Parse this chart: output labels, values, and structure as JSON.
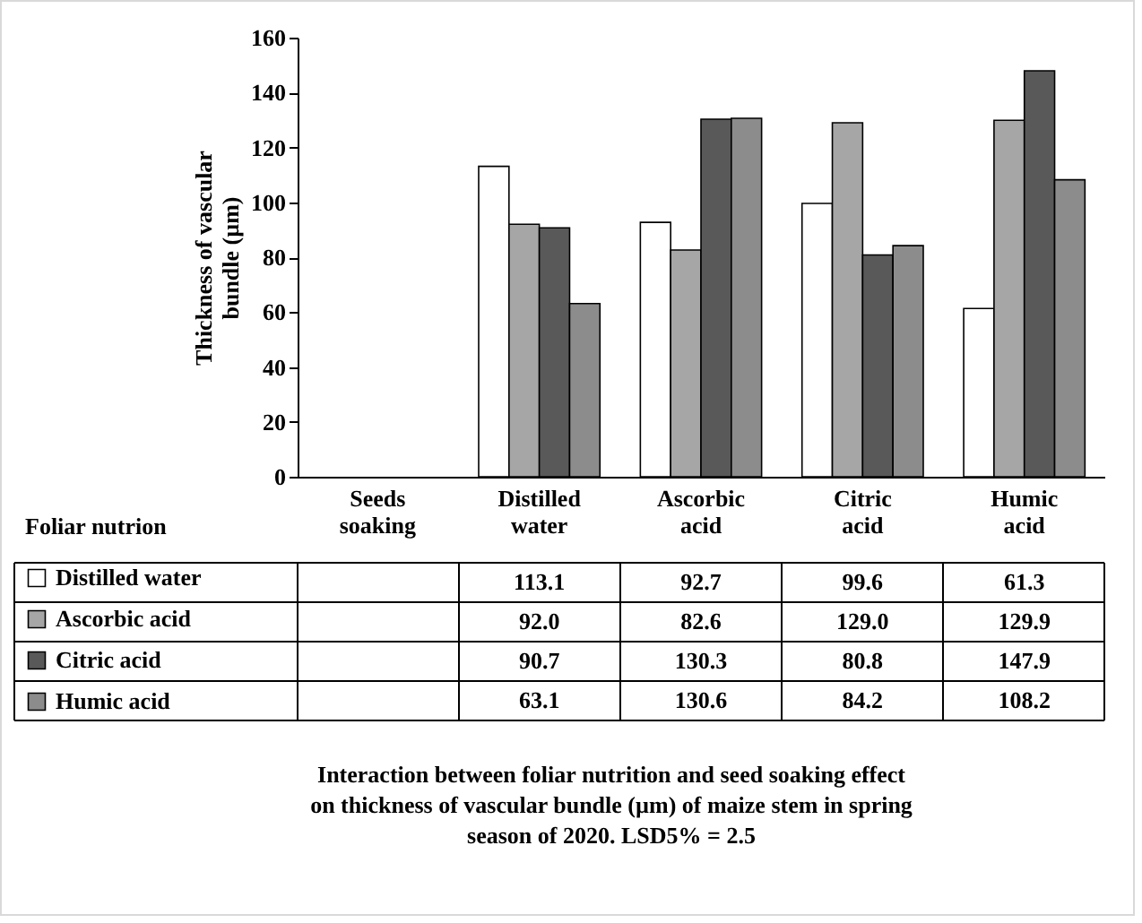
{
  "chart_data": {
    "type": "bar",
    "ylabel": "Thickness of vascular bundle  (µm)",
    "legend_title": "Foliar nutrion",
    "categories": [
      "Seeds soaking",
      "Distilled water",
      "Ascorbic acid",
      "Citric acid",
      "Humic acid"
    ],
    "series": [
      {
        "name": "Distilled water",
        "color": "#ffffff",
        "values": [
          null,
          113.1,
          92.7,
          99.6,
          61.3
        ],
        "value_labels": [
          null,
          "113.1",
          "92.7",
          "99.6",
          "61.3"
        ]
      },
      {
        "name": "Ascorbic acid",
        "color": "#a6a6a6",
        "values": [
          null,
          92.0,
          82.6,
          129.0,
          129.9
        ],
        "value_labels": [
          null,
          "92.0",
          "82.6",
          "129.0",
          "129.9"
        ]
      },
      {
        "name": "Citric acid",
        "color": "#595959",
        "values": [
          null,
          90.7,
          130.3,
          80.8,
          147.9
        ],
        "value_labels": [
          null,
          "90.7",
          "130.3",
          "80.8",
          "147.9"
        ]
      },
      {
        "name": "Humic acid",
        "color": "#8c8c8c",
        "values": [
          null,
          63.1,
          130.6,
          84.2,
          108.2
        ],
        "value_labels": [
          null,
          "63.1",
          "130.6",
          "84.2",
          "108.2"
        ]
      }
    ],
    "ylim": [
      0,
      160
    ],
    "yticks": [
      0,
      20,
      40,
      60,
      80,
      100,
      120,
      140,
      160
    ],
    "legend": "left",
    "annotations": [
      "Interaction between foliar nutrition and seed soaking effect on thickness of vascular bundle (µm) of maize stem in spring season of 2020.",
      "LSD5% = 2.5"
    ]
  }
}
